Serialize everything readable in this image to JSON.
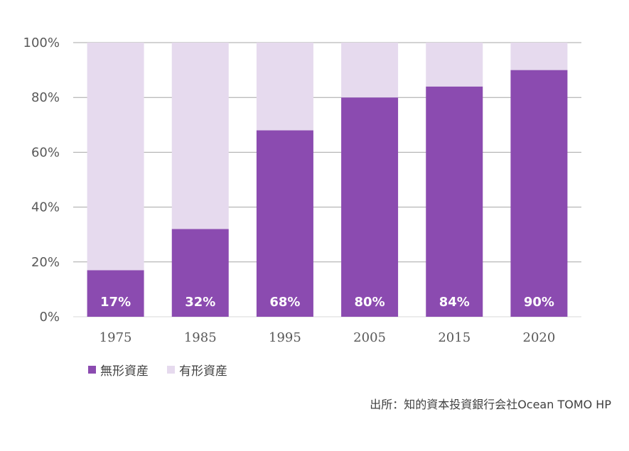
{
  "chart_data": {
    "type": "bar",
    "stacked": true,
    "categories": [
      "1975",
      "1985",
      "1995",
      "2005",
      "2015",
      "2020"
    ],
    "series": [
      {
        "name": "無形資産",
        "values": [
          17,
          32,
          68,
          80,
          84,
          90
        ],
        "color": "#8B4BB0"
      },
      {
        "name": "有形資産",
        "values": [
          83,
          68,
          32,
          20,
          16,
          10
        ],
        "color": "#E6DAEE"
      }
    ],
    "data_labels": [
      "17%",
      "32%",
      "68%",
      "80%",
      "84%",
      "90%"
    ],
    "ylim": [
      0,
      100
    ],
    "yticks": [
      "0%",
      "20%",
      "40%",
      "60%",
      "80%",
      "100%"
    ],
    "grid": true,
    "legend_position": "bottom-left",
    "title": "",
    "xlabel": "",
    "ylabel": ""
  },
  "source": "出所：知的資本投資銀行会社Ocean TOMO HP"
}
